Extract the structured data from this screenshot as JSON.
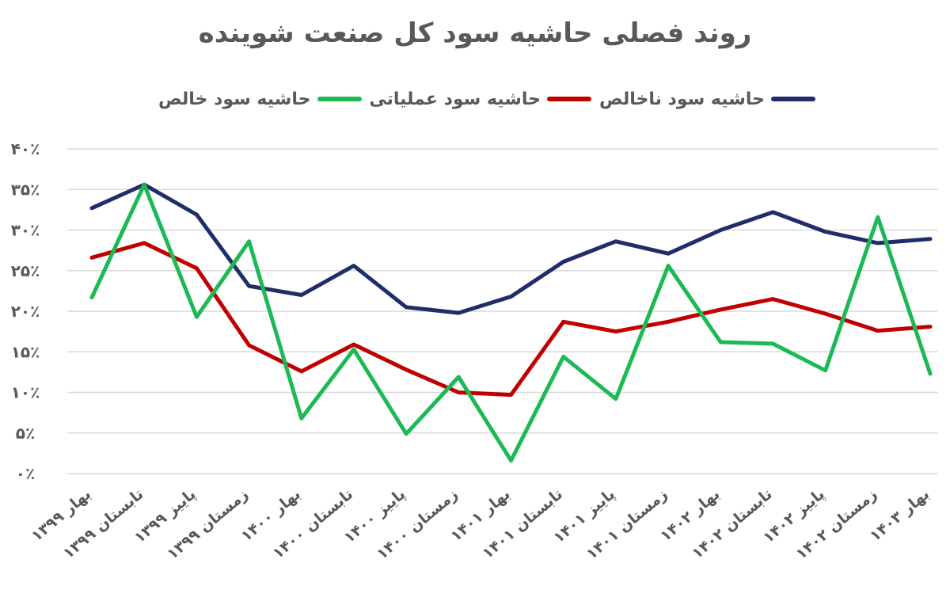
{
  "chart_data": {
    "type": "line",
    "title": "روند فصلی حاشیه سود کل صنعت شوینده",
    "y_tick_labels": [
      "۰٪",
      "۵٪",
      "۱۰٪",
      "۱۵٪",
      "۲۰٪",
      "۲۵٪",
      "۳۰٪",
      "۳۵٪",
      "۴۰٪"
    ],
    "ylim": [
      0,
      40
    ],
    "grid": true,
    "legend_position": "top",
    "categories": [
      "بهار ۱۳۹۹",
      "تابستان ۱۳۹۹",
      "پاییز ۱۳۹۹",
      "زمستان ۱۳۹۹",
      "بهار ۱۴۰۰",
      "تابستان ۱۴۰۰",
      "پاییز ۱۴۰۰",
      "زمستان ۱۴۰۰",
      "بهار ۱۴۰۱",
      "تابستان ۱۴۰۱",
      "پاییز ۱۴۰۱",
      "زمستان ۱۴۰۱",
      "بهار ۱۴۰۲",
      "تابستان ۱۴۰۲",
      "پاییز ۱۴۰۲",
      "زمستان ۱۴۰۲",
      "بهار ۱۴۰۳"
    ],
    "series": [
      {
        "name": "حاشیه سود ناخالص",
        "color": "#1f2d6b",
        "values": [
          32.7,
          35.6,
          31.9,
          23.1,
          22.0,
          25.6,
          20.5,
          19.8,
          21.8,
          26.1,
          28.6,
          27.1,
          30.0,
          32.2,
          29.8,
          28.4,
          28.9
        ]
      },
      {
        "name": "حاشیه سود عملیاتی",
        "color": "#c00000",
        "values": [
          26.6,
          28.4,
          25.3,
          15.8,
          12.6,
          15.9,
          12.8,
          10.0,
          9.7,
          18.7,
          17.5,
          18.7,
          20.2,
          21.5,
          19.7,
          17.6,
          18.1
        ]
      },
      {
        "name": "حاشیه سود خالص",
        "color": "#1db954",
        "values": [
          21.7,
          35.6,
          19.3,
          28.6,
          6.8,
          15.3,
          4.9,
          11.9,
          1.6,
          14.4,
          9.2,
          25.6,
          16.2,
          16.0,
          12.7,
          31.6,
          12.3
        ]
      }
    ]
  }
}
